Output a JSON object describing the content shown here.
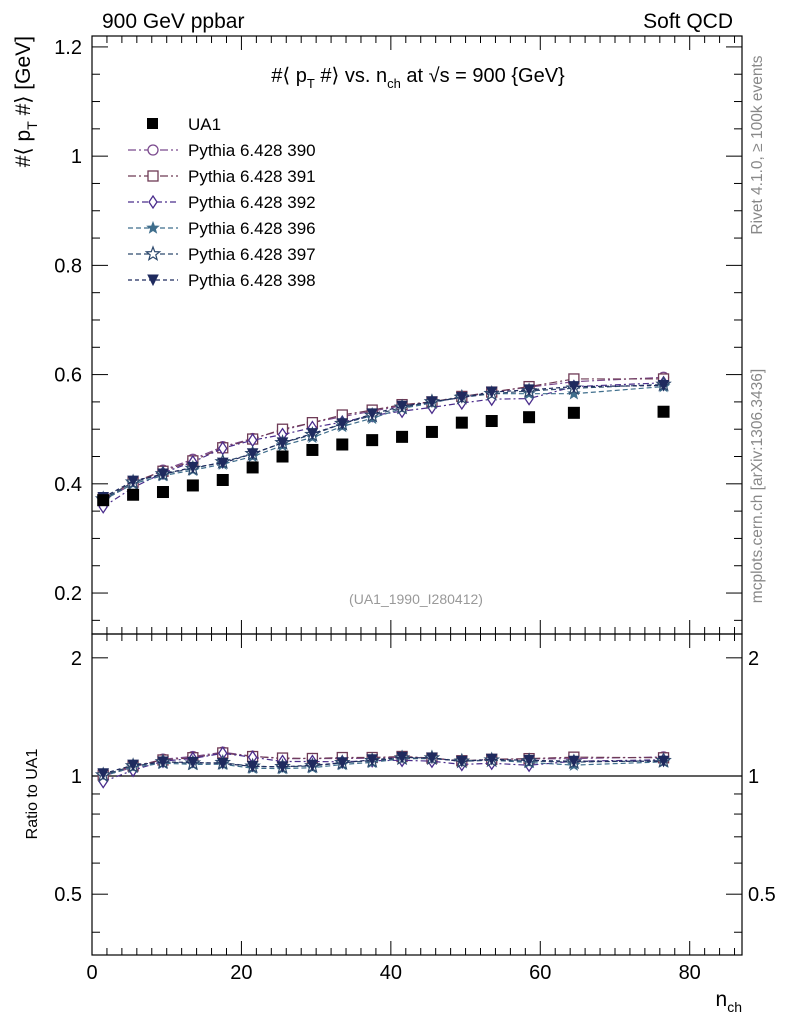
{
  "header": {
    "left": "900 GeV ppbar",
    "right": "Soft QCD"
  },
  "side_labels": {
    "top": "Rivet 4.1.0, ≥ 100k events",
    "bottom": "mcplots.cern.ch [arXiv:1306.3436]"
  },
  "colors": {
    "c390": "#7b4a8e",
    "c391": "#6e3a55",
    "c392": "#4b2d8c",
    "c396": "#3f6e8c",
    "c397": "#2e4a6e",
    "c398": "#1f2a5e",
    "data": "#000000"
  },
  "chart_data": {
    "type": "scatter",
    "title_parts": {
      "hash": "#⟨ p",
      "sub1": "T",
      "hash2": " #⟩ vs. n",
      "sub2": "ch",
      "rest": " at √s = 900 {GeV}"
    },
    "ylabel_parts": {
      "main": "#⟨ p",
      "sub": "T",
      "end": " #⟩ [GeV]"
    },
    "xlabel_parts": {
      "main": "n",
      "sub": "ch"
    },
    "ratio_ylabel": "Ratio to UA1",
    "analysis_id": "(UA1_1990_I280412)",
    "xlim": [
      0,
      87
    ],
    "ylim": [
      0.125,
      1.22
    ],
    "ratio_ylim": [
      0.35,
      2.3
    ],
    "x_ticks": [
      "0",
      "20",
      "40",
      "60",
      "80"
    ],
    "y_ticks": [
      "0.2",
      "0.4",
      "0.6",
      "0.8",
      "1",
      "1.2"
    ],
    "ratio_ticks": [
      "0.5",
      "1",
      "2"
    ],
    "x": [
      1.5,
      5.5,
      9.5,
      13.5,
      17.5,
      21.5,
      25.5,
      29.5,
      33.5,
      37.5,
      41.5,
      45.5,
      49.5,
      53.5,
      58.5,
      64.5,
      76.5
    ],
    "data": {
      "name": "UA1",
      "values": [
        0.37,
        0.38,
        0.385,
        0.397,
        0.407,
        0.43,
        0.45,
        0.462,
        0.472,
        0.48,
        0.486,
        0.495,
        0.512,
        0.515,
        0.522,
        0.53,
        0.532
      ]
    },
    "series": [
      {
        "name": "Pythia 6.428 390",
        "marker": "circle-open",
        "dash": "8,3,2,3",
        "values": [
          0.37,
          0.4,
          0.425,
          0.445,
          0.468,
          0.483,
          0.498,
          0.512,
          0.523,
          0.533,
          0.543,
          0.55,
          0.558,
          0.568,
          0.577,
          0.587,
          0.595
        ]
      },
      {
        "name": "Pythia 6.428 391",
        "marker": "square-open",
        "dash": "8,3,2,3",
        "values": [
          0.372,
          0.403,
          0.423,
          0.442,
          0.466,
          0.482,
          0.5,
          0.512,
          0.526,
          0.535,
          0.545,
          0.55,
          0.56,
          0.568,
          0.578,
          0.592,
          0.592
        ]
      },
      {
        "name": "Pythia 6.428 392",
        "marker": "diamond-open",
        "dash": "6,3,2,3",
        "values": [
          0.358,
          0.393,
          0.42,
          0.44,
          0.465,
          0.48,
          0.49,
          0.503,
          0.513,
          0.525,
          0.533,
          0.54,
          0.548,
          0.555,
          0.556,
          0.578,
          0.585
        ]
      },
      {
        "name": "Pythia 6.428 396",
        "marker": "star-filled",
        "dash": "5,3",
        "values": [
          0.37,
          0.4,
          0.415,
          0.425,
          0.436,
          0.45,
          0.47,
          0.485,
          0.505,
          0.52,
          0.538,
          0.548,
          0.56,
          0.565,
          0.565,
          0.565,
          0.578
        ]
      },
      {
        "name": "Pythia 6.428 397",
        "marker": "star-open",
        "dash": "5,3",
        "values": [
          0.372,
          0.403,
          0.418,
          0.428,
          0.44,
          0.455,
          0.475,
          0.49,
          0.51,
          0.525,
          0.54,
          0.55,
          0.558,
          0.565,
          0.57,
          0.575,
          0.582
        ]
      },
      {
        "name": "Pythia 6.428 398",
        "marker": "triangle-down-filled",
        "dash": "4,3",
        "values": [
          0.375,
          0.405,
          0.418,
          0.43,
          0.438,
          0.455,
          0.475,
          0.492,
          0.51,
          0.528,
          0.542,
          0.55,
          0.558,
          0.568,
          0.572,
          0.578,
          0.58
        ]
      }
    ]
  }
}
